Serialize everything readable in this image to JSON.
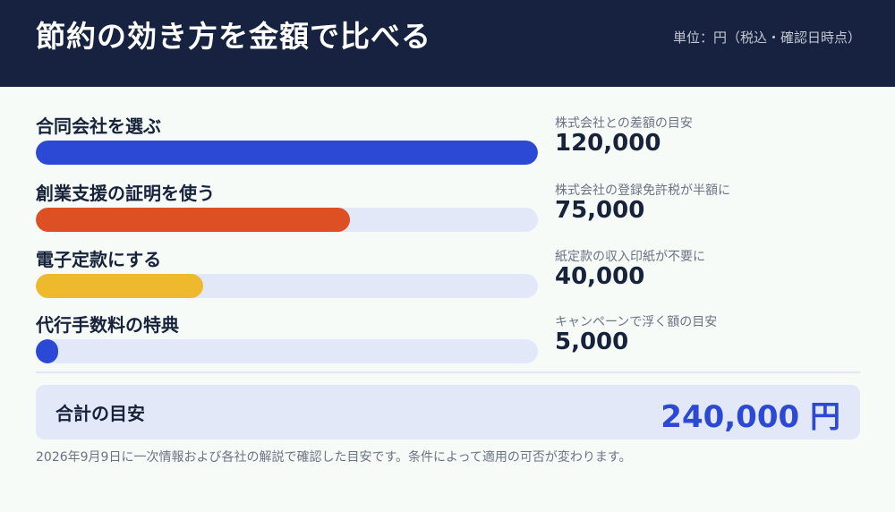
{
  "header": {
    "title": "節約の効き方を金額で比べる",
    "unit": "単位：円（税込・確認日時点）"
  },
  "chart_data": {
    "type": "bar",
    "max": 120000,
    "categories": [
      "合同会社を選ぶ",
      "創業支援の証明を使う",
      "電子定款にする",
      "代行手数料の特典"
    ],
    "values": [
      120000,
      75000,
      40000,
      5000
    ],
    "rows": [
      {
        "label": "合同会社を選ぶ",
        "value": 120000,
        "note": "株式会社との差額の目安",
        "amount": "120,000",
        "color": "#2b49d4"
      },
      {
        "label": "創業支援の証明を使う",
        "value": 75000,
        "note": "株式会社の登録免許税が半額に",
        "amount": "75,000",
        "color": "#dd5024"
      },
      {
        "label": "電子定款にする",
        "value": 40000,
        "note": "紙定款の収入印紙が不要に",
        "amount": "40,000",
        "color": "#efb92e"
      },
      {
        "label": "代行手数料の特典",
        "value": 5000,
        "note": "キャンペーンで浮く額の目安",
        "amount": "5,000",
        "color": "#2b49d4"
      }
    ],
    "track_color": "#e3e8f8"
  },
  "total": {
    "label": "合計の目安",
    "value": "240,000 円"
  },
  "footnote": "2026年9月9日に一次情報および各社の解説で確認した目安です。条件によって適用の可否が変わります。"
}
